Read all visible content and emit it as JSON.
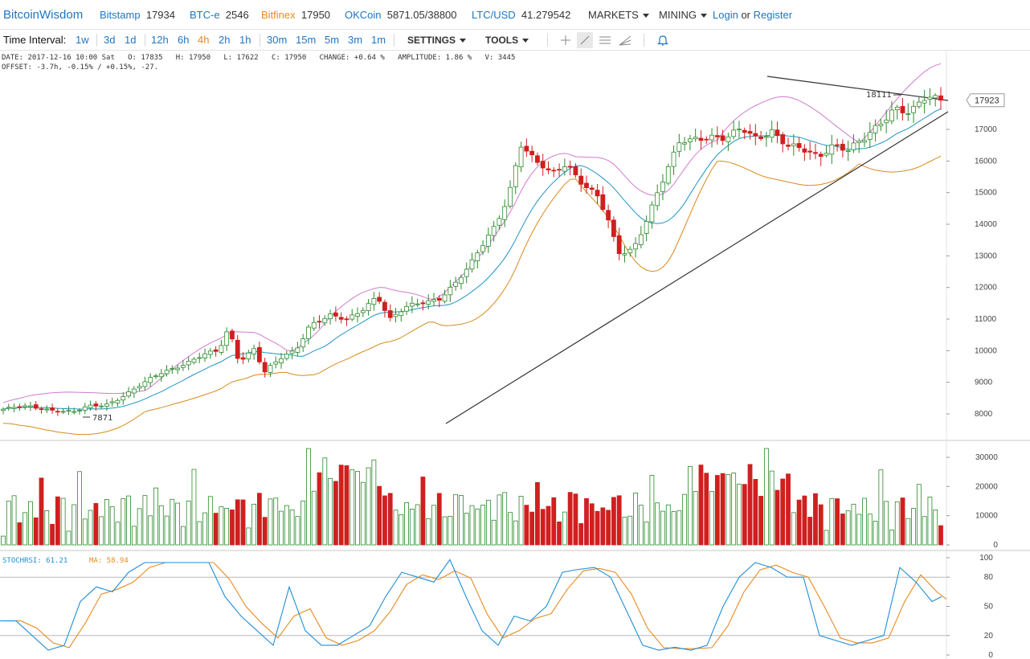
{
  "header": {
    "brand": "BitcoinWisdom",
    "tickers": [
      {
        "name": "Bitstamp",
        "price": "17934",
        "color": "#1e76c3"
      },
      {
        "name": "BTC-e",
        "price": "2546",
        "color": "#1e76c3"
      },
      {
        "name": "Bitfinex",
        "price": "17950",
        "color": "#e88a1e"
      },
      {
        "name": "OKCoin",
        "price": "5871.05/38800",
        "color": "#1e76c3"
      },
      {
        "name": "LTC/USD",
        "price": "41.279542",
        "color": "#1e76c3"
      }
    ],
    "markets_label": "MARKETS",
    "mining_label": "MINING",
    "login_label": "Login",
    "or_label": "or",
    "register_label": "Register"
  },
  "toolbar": {
    "time_interval_label": "Time Interval:",
    "intervals": [
      "1w",
      "3d",
      "1d",
      "12h",
      "6h",
      "4h",
      "2h",
      "1h",
      "30m",
      "15m",
      "5m",
      "3m",
      "1m"
    ],
    "active_interval": "4h",
    "settings_label": "SETTINGS",
    "tools_label": "TOOLS",
    "tool_icons": [
      "crosshair-icon",
      "trendline-icon",
      "horizontal-lines-icon",
      "fan-icon",
      "bell-icon"
    ]
  },
  "info": {
    "line1": "DATE: 2017-12-16 10:00 Sat   O: 17835   H: 17950   L: 17622   C: 17950   CHANGE: +0.64 %   AMPLITUDE: 1.86 %   V: 3445",
    "line2": "OFFSET: -3.7h, -0.15% / +0.15%, -27."
  },
  "price_axis": {
    "ticks": [
      8000,
      9000,
      10000,
      11000,
      12000,
      13000,
      14000,
      15000,
      16000,
      17000
    ],
    "current_price": "17923",
    "high_marker": "18111",
    "low_marker": "7871"
  },
  "volume_axis": {
    "ticks": [
      "0",
      "10000",
      "20000",
      "30000"
    ]
  },
  "stoch_panel": {
    "stochrsi_label": "STOCHRSI: 61.21",
    "ma_label": "MA: 58.94",
    "ticks": [
      "0",
      "20",
      "50",
      "80",
      "100"
    ]
  },
  "colors": {
    "up": "#2b8a2b",
    "down": "#d01f1f",
    "bb_upper": "#cf7bd0",
    "bb_mid": "#1d95c4",
    "bb_lower": "#d98a1a",
    "stoch": "#1f8fd8",
    "stoch_ma": "#e88a1e"
  }
}
